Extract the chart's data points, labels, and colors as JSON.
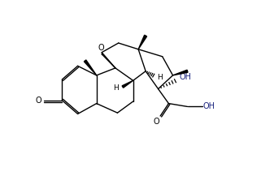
{
  "bg_color": "#ffffff",
  "line_color": "#000000",
  "text_color": "#000000",
  "label_OH": "OH",
  "label_O": "O",
  "label_H": "H",
  "figsize": [
    3.37,
    2.17
  ],
  "dpi": 100,
  "lw": 1.0
}
